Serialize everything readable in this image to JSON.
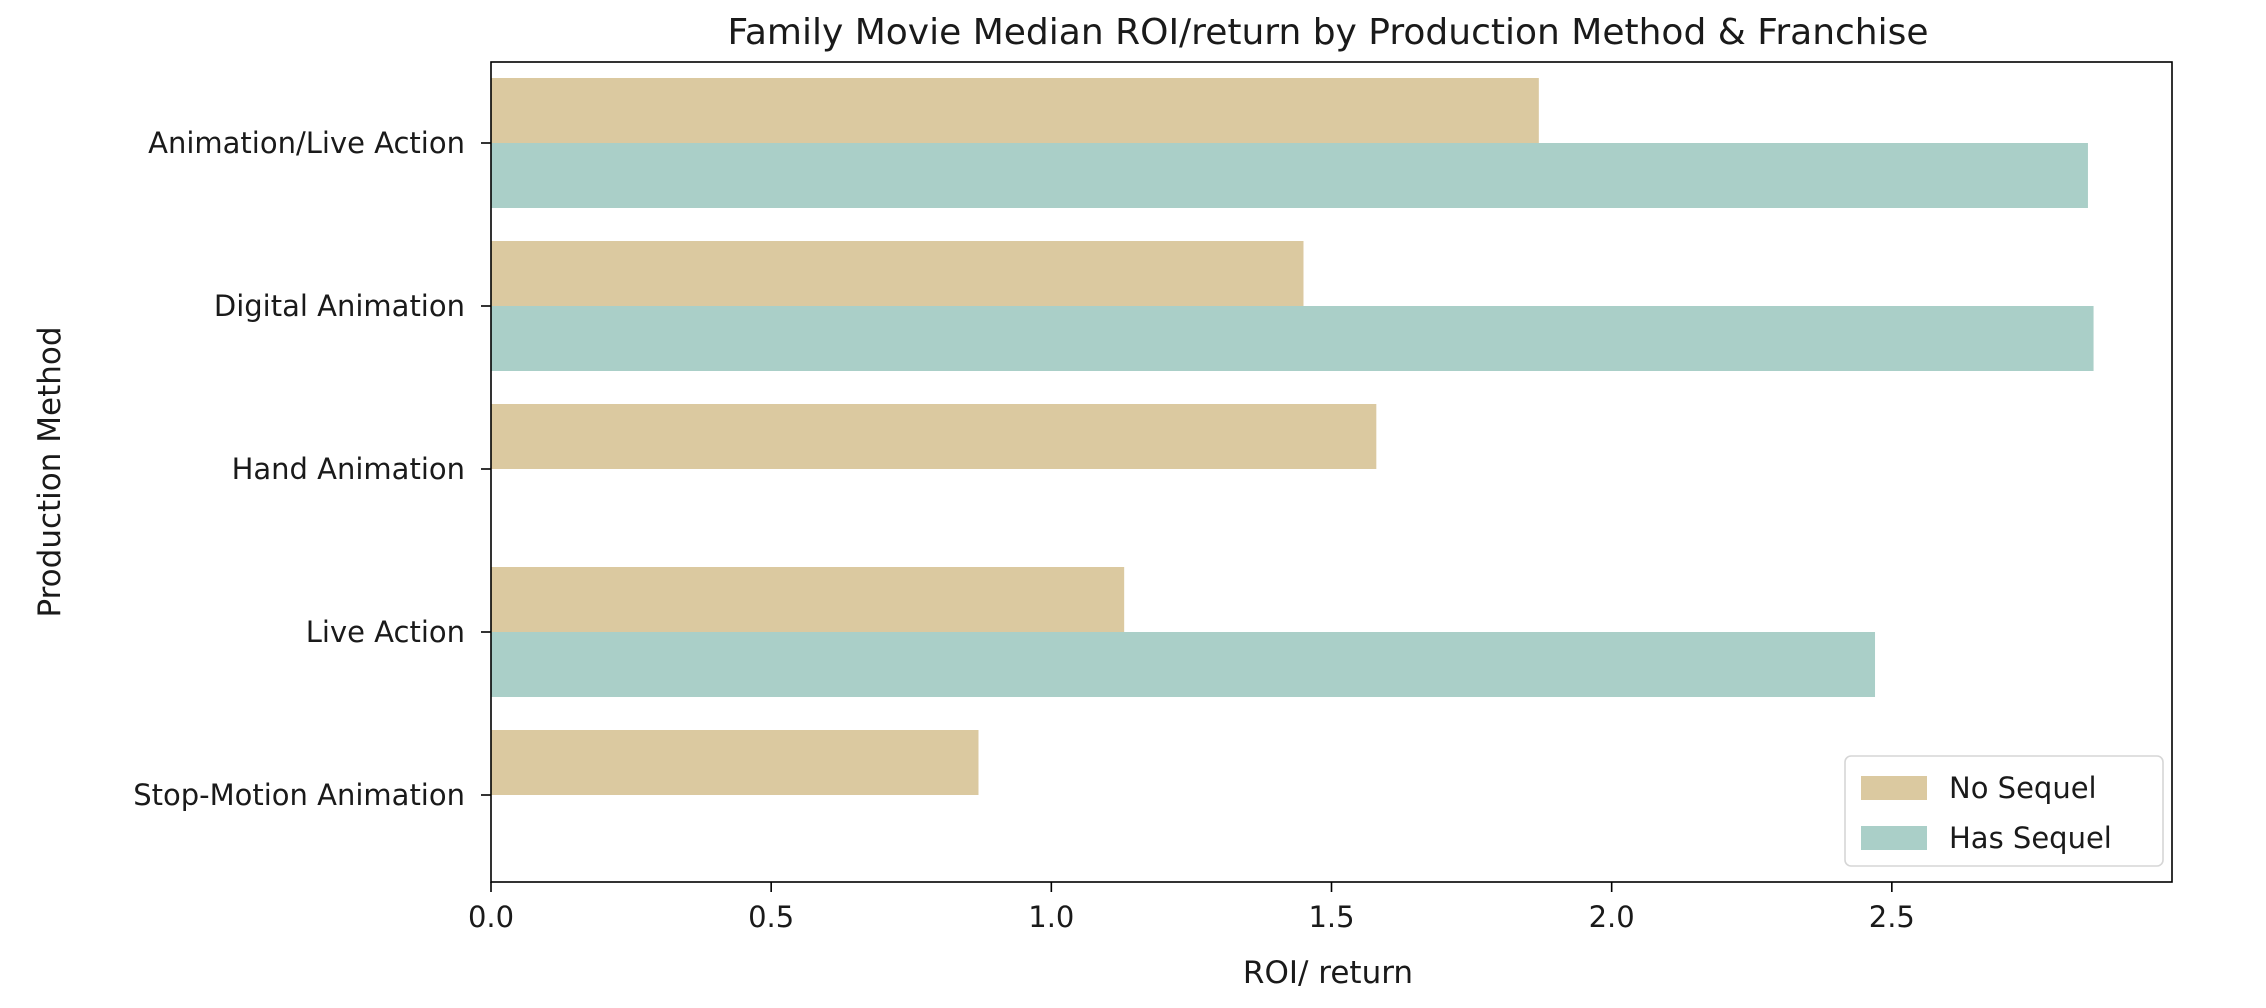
{
  "chart_data": {
    "type": "bar",
    "orientation": "horizontal",
    "title": "Family Movie Median ROI/return by Production Method & Franchise",
    "xlabel": "ROI/ return",
    "ylabel": "Production Method",
    "categories": [
      "Animation/Live Action",
      "Digital Animation",
      "Hand Animation",
      "Live Action",
      "Stop-Motion Animation"
    ],
    "series": [
      {
        "name": "No Sequel",
        "color": "#dbc9a0",
        "values": [
          1.87,
          1.45,
          1.58,
          1.13,
          0.87
        ]
      },
      {
        "name": "Has Sequel",
        "color": "#aacfc8",
        "values": [
          2.85,
          2.86,
          null,
          2.47,
          null
        ]
      }
    ],
    "xlim": [
      0,
      3.0
    ],
    "xticks": [
      0.0,
      0.5,
      1.0,
      1.5,
      2.0,
      2.5
    ],
    "xtick_labels": [
      "0.0",
      "0.5",
      "1.0",
      "1.5",
      "2.0",
      "2.5"
    ],
    "grid": false,
    "legend": {
      "position": "lower-right"
    }
  }
}
